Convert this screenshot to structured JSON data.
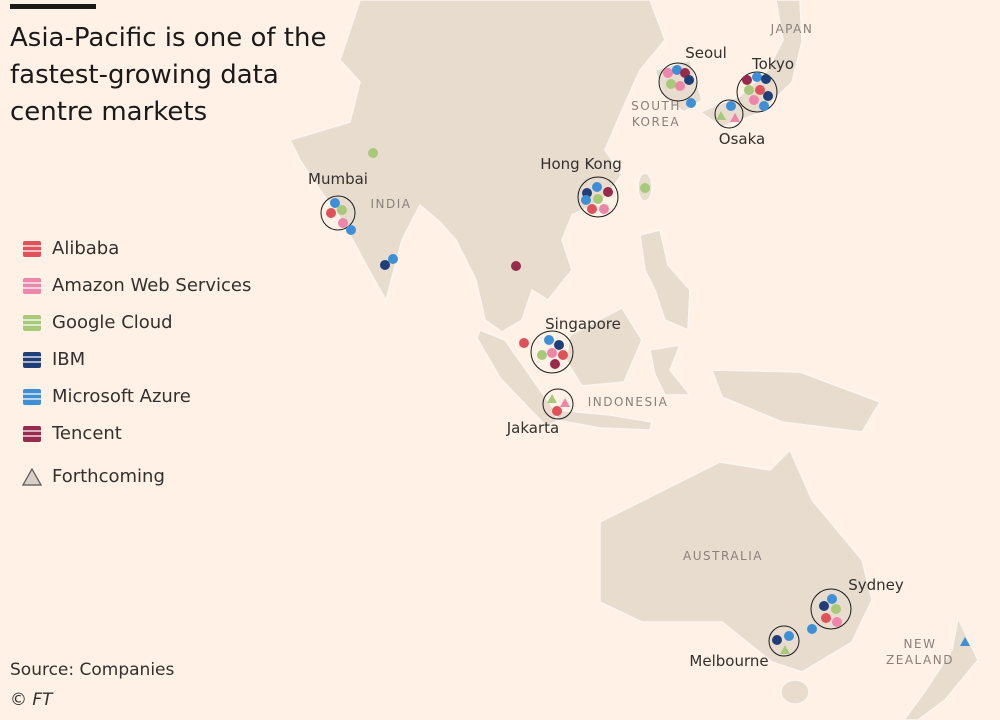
{
  "header": {
    "title": "Asia-Pacific is one of the fastest-growing data centre markets"
  },
  "legend": {
    "items": [
      {
        "label": "Alibaba",
        "color": "#e05259"
      },
      {
        "label": "Amazon Web Services",
        "color": "#ee86a9"
      },
      {
        "label": "Google Cloud",
        "color": "#a9c97a"
      },
      {
        "label": "IBM",
        "color": "#203f78"
      },
      {
        "label": "Microsoft Azure",
        "color": "#3f8fd6"
      },
      {
        "label": "Tencent",
        "color": "#982b4c"
      }
    ],
    "forthcoming": "Forthcoming"
  },
  "map": {
    "cities": [
      "Seoul",
      "Tokyo",
      "Osaka",
      "Hong Kong",
      "Mumbai",
      "Singapore",
      "Jakarta",
      "Sydney",
      "Melbourne"
    ],
    "regions": [
      "JAPAN",
      "SOUTH KOREA",
      "INDIA",
      "INDONESIA",
      "AUSTRALIA",
      "NEW ZEALAND"
    ]
  },
  "footer": {
    "source": "Source: Companies",
    "copyright": "© FT"
  }
}
